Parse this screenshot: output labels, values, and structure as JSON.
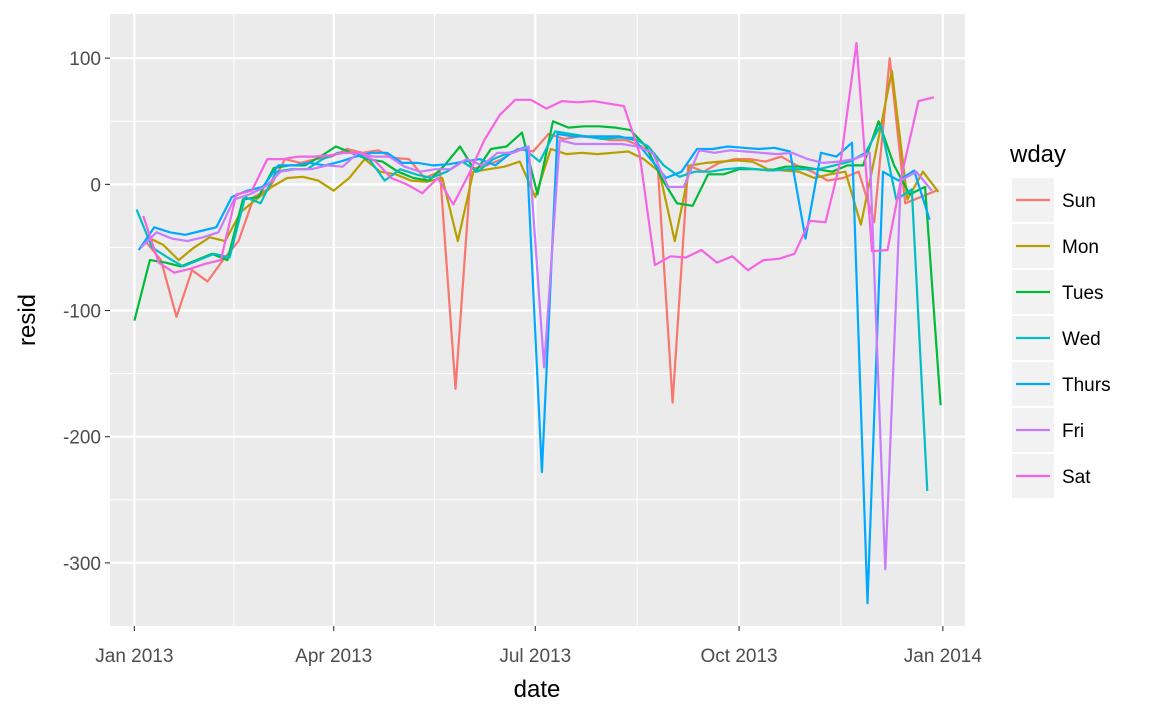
{
  "chart_data": {
    "type": "line",
    "xlabel": "date",
    "ylabel": "resid",
    "x_tick_labels": [
      "Jan 2013",
      "Apr 2013",
      "Jul 2013",
      "Oct 2013",
      "Jan 2014"
    ],
    "x_tick_dates": [
      "2013-01-01",
      "2013-04-01",
      "2013-07-01",
      "2013-10-01",
      "2014-01-01"
    ],
    "xlim": [
      "2012-12-21",
      "2014-01-11"
    ],
    "y_tick_labels": [
      "100",
      "0",
      "-100",
      "-200",
      "-300"
    ],
    "y_ticks": [
      100,
      0,
      -100,
      -200,
      -300
    ],
    "ylim": [
      -350,
      135
    ],
    "grid": true,
    "legend": {
      "title": "wday",
      "position": "right"
    },
    "series": [
      {
        "name": "Sun",
        "color": "#F8766D",
        "x": [
          "2013-01-06",
          "2013-01-13",
          "2013-01-20",
          "2013-01-27",
          "2013-02-03",
          "2013-02-10",
          "2013-02-17",
          "2013-02-24",
          "2013-03-03",
          "2013-03-10",
          "2013-03-17",
          "2013-03-24",
          "2013-03-31",
          "2013-04-07",
          "2013-04-14",
          "2013-04-21",
          "2013-04-28",
          "2013-05-05",
          "2013-05-12",
          "2013-05-19",
          "2013-05-26",
          "2013-06-02",
          "2013-06-09",
          "2013-06-16",
          "2013-06-23",
          "2013-06-30",
          "2013-07-07",
          "2013-07-14",
          "2013-07-21",
          "2013-07-28",
          "2013-08-04",
          "2013-08-11",
          "2013-08-18",
          "2013-08-25",
          "2013-09-01",
          "2013-09-08",
          "2013-09-15",
          "2013-09-22",
          "2013-09-29",
          "2013-10-06",
          "2013-10-13",
          "2013-10-20",
          "2013-10-27",
          "2013-11-03",
          "2013-11-10",
          "2013-11-17",
          "2013-11-24",
          "2013-12-01",
          "2013-12-08",
          "2013-12-15",
          "2013-12-22",
          "2013-12-29"
        ],
        "y": [
          -45,
          -60,
          -105,
          -68,
          -77,
          -60,
          -45,
          -10,
          -3,
          20,
          17,
          20,
          22,
          28,
          25,
          27,
          21,
          20,
          5,
          10,
          -162,
          12,
          15,
          20,
          28,
          26,
          40,
          36,
          38,
          37,
          35,
          35,
          30,
          22,
          -173,
          15,
          10,
          17,
          20,
          20,
          18,
          22,
          15,
          10,
          3,
          5,
          10,
          -30,
          100,
          -15,
          -10,
          -5
        ]
      },
      {
        "name": "Mon",
        "color": "#B79F00",
        "x": [
          "2013-01-07",
          "2013-01-14",
          "2013-01-21",
          "2013-01-28",
          "2013-02-04",
          "2013-02-11",
          "2013-02-18",
          "2013-02-25",
          "2013-03-04",
          "2013-03-11",
          "2013-03-18",
          "2013-03-25",
          "2013-04-01",
          "2013-04-08",
          "2013-04-15",
          "2013-04-22",
          "2013-04-29",
          "2013-05-06",
          "2013-05-13",
          "2013-05-20",
          "2013-05-27",
          "2013-06-03",
          "2013-06-10",
          "2013-06-17",
          "2013-06-24",
          "2013-07-01",
          "2013-07-08",
          "2013-07-15",
          "2013-07-22",
          "2013-07-29",
          "2013-08-05",
          "2013-08-12",
          "2013-08-19",
          "2013-08-26",
          "2013-09-02",
          "2013-09-09",
          "2013-09-16",
          "2013-09-23",
          "2013-09-30",
          "2013-10-07",
          "2013-10-14",
          "2013-10-21",
          "2013-10-28",
          "2013-11-04",
          "2013-11-11",
          "2013-11-18",
          "2013-11-25",
          "2013-12-02",
          "2013-12-09",
          "2013-12-16",
          "2013-12-23",
          "2013-12-30"
        ],
        "y": [
          -42,
          -48,
          -60,
          -50,
          -42,
          -45,
          -22,
          -12,
          -2,
          5,
          6,
          3,
          -5,
          5,
          20,
          10,
          8,
          3,
          2,
          5,
          -45,
          10,
          12,
          14,
          18,
          -10,
          28,
          24,
          25,
          24,
          25,
          26,
          20,
          10,
          -45,
          15,
          17,
          18,
          19,
          18,
          12,
          11,
          10,
          5,
          8,
          10,
          -32,
          28,
          90,
          -12,
          10,
          -6
        ]
      },
      {
        "name": "Tues",
        "color": "#00BA38",
        "x": [
          "2013-01-01",
          "2013-01-08",
          "2013-01-15",
          "2013-01-22",
          "2013-01-29",
          "2013-02-05",
          "2013-02-12",
          "2013-02-19",
          "2013-02-26",
          "2013-03-05",
          "2013-03-12",
          "2013-03-19",
          "2013-03-26",
          "2013-04-02",
          "2013-04-09",
          "2013-04-16",
          "2013-04-23",
          "2013-04-30",
          "2013-05-07",
          "2013-05-14",
          "2013-05-21",
          "2013-05-28",
          "2013-06-04",
          "2013-06-11",
          "2013-06-18",
          "2013-06-25",
          "2013-07-02",
          "2013-07-09",
          "2013-07-16",
          "2013-07-23",
          "2013-07-30",
          "2013-08-06",
          "2013-08-13",
          "2013-08-20",
          "2013-08-27",
          "2013-09-03",
          "2013-09-10",
          "2013-09-17",
          "2013-09-24",
          "2013-10-01",
          "2013-10-08",
          "2013-10-15",
          "2013-10-22",
          "2013-10-29",
          "2013-11-05",
          "2013-11-12",
          "2013-11-19",
          "2013-11-26",
          "2013-12-03",
          "2013-12-10",
          "2013-12-17",
          "2013-12-24",
          "2013-12-31"
        ],
        "y": [
          -108,
          -60,
          -62,
          -65,
          -60,
          -55,
          -60,
          -12,
          -10,
          13,
          15,
          15,
          22,
          30,
          25,
          20,
          18,
          10,
          5,
          3,
          15,
          30,
          10,
          28,
          30,
          41,
          -8,
          50,
          45,
          46,
          46,
          45,
          43,
          30,
          5,
          -15,
          -17,
          8,
          8,
          12,
          12,
          11,
          14,
          14,
          12,
          10,
          15,
          15,
          50,
          15,
          -8,
          -2,
          -175
        ]
      },
      {
        "name": "Wed",
        "color": "#00BFC4",
        "x": [
          "2013-01-02",
          "2013-01-09",
          "2013-01-16",
          "2013-01-23",
          "2013-01-30",
          "2013-02-06",
          "2013-02-13",
          "2013-02-20",
          "2013-02-27",
          "2013-03-06",
          "2013-03-13",
          "2013-03-20",
          "2013-03-27",
          "2013-04-03",
          "2013-04-10",
          "2013-04-17",
          "2013-04-24",
          "2013-05-01",
          "2013-05-08",
          "2013-05-15",
          "2013-05-22",
          "2013-05-29",
          "2013-06-05",
          "2013-06-12",
          "2013-06-19",
          "2013-06-26",
          "2013-07-03",
          "2013-07-10",
          "2013-07-17",
          "2013-07-24",
          "2013-07-31",
          "2013-08-07",
          "2013-08-14",
          "2013-08-21",
          "2013-08-28",
          "2013-09-04",
          "2013-09-11",
          "2013-09-18",
          "2013-09-25",
          "2013-10-02",
          "2013-10-09",
          "2013-10-16",
          "2013-10-23",
          "2013-10-30",
          "2013-11-06",
          "2013-11-13",
          "2013-11-20",
          "2013-11-27",
          "2013-12-04",
          "2013-12-11",
          "2013-12-18",
          "2013-12-25"
        ],
        "y": [
          -20,
          -50,
          -58,
          -65,
          -60,
          -55,
          -58,
          -10,
          -15,
          10,
          12,
          12,
          20,
          25,
          25,
          20,
          3,
          12,
          8,
          5,
          10,
          18,
          10,
          20,
          25,
          28,
          18,
          42,
          40,
          38,
          36,
          37,
          37,
          30,
          15,
          6,
          10,
          10,
          12,
          13,
          12,
          11,
          12,
          12,
          12,
          15,
          18,
          25,
          47,
          -12,
          -4,
          -243
        ]
      },
      {
        "name": "Thurs",
        "color": "#00A9FF",
        "x": [
          "2013-01-03",
          "2013-01-10",
          "2013-01-17",
          "2013-01-24",
          "2013-01-31",
          "2013-02-07",
          "2013-02-14",
          "2013-02-21",
          "2013-02-28",
          "2013-03-07",
          "2013-03-14",
          "2013-03-21",
          "2013-03-28",
          "2013-04-04",
          "2013-04-11",
          "2013-04-18",
          "2013-04-25",
          "2013-05-02",
          "2013-05-09",
          "2013-05-16",
          "2013-05-23",
          "2013-05-30",
          "2013-06-06",
          "2013-06-13",
          "2013-06-20",
          "2013-06-27",
          "2013-07-04",
          "2013-07-11",
          "2013-07-18",
          "2013-07-25",
          "2013-08-01",
          "2013-08-08",
          "2013-08-15",
          "2013-08-22",
          "2013-08-29",
          "2013-09-05",
          "2013-09-12",
          "2013-09-19",
          "2013-09-26",
          "2013-10-03",
          "2013-10-10",
          "2013-10-17",
          "2013-10-24",
          "2013-10-31",
          "2013-11-07",
          "2013-11-14",
          "2013-11-21",
          "2013-11-28",
          "2013-12-05",
          "2013-12-12",
          "2013-12-19",
          "2013-12-26"
        ],
        "y": [
          -52,
          -34,
          -38,
          -40,
          -37,
          -34,
          -10,
          -5,
          -2,
          15,
          15,
          17,
          15,
          18,
          22,
          25,
          25,
          17,
          17,
          15,
          16,
          18,
          20,
          15,
          25,
          30,
          -228,
          40,
          38,
          38,
          38,
          38,
          35,
          20,
          5,
          10,
          28,
          28,
          30,
          29,
          28,
          29,
          26,
          -43,
          25,
          22,
          33,
          -332,
          10,
          3,
          11,
          -28
        ]
      },
      {
        "name": "Fri",
        "color": "#C77CFF",
        "x": [
          "2013-01-04",
          "2013-01-11",
          "2013-01-18",
          "2013-01-25",
          "2013-02-01",
          "2013-02-08",
          "2013-02-15",
          "2013-02-22",
          "2013-03-01",
          "2013-03-08",
          "2013-03-15",
          "2013-03-22",
          "2013-03-29",
          "2013-04-05",
          "2013-04-12",
          "2013-04-19",
          "2013-04-26",
          "2013-05-03",
          "2013-05-10",
          "2013-05-17",
          "2013-05-24",
          "2013-05-31",
          "2013-06-07",
          "2013-06-14",
          "2013-06-21",
          "2013-06-28",
          "2013-07-05",
          "2013-07-12",
          "2013-07-19",
          "2013-07-26",
          "2013-08-02",
          "2013-08-09",
          "2013-08-16",
          "2013-08-23",
          "2013-08-30",
          "2013-09-06",
          "2013-09-13",
          "2013-09-20",
          "2013-09-27",
          "2013-10-04",
          "2013-10-11",
          "2013-10-18",
          "2013-10-25",
          "2013-11-01",
          "2013-11-08",
          "2013-11-15",
          "2013-11-22",
          "2013-11-29",
          "2013-12-06",
          "2013-12-13",
          "2013-12-20",
          "2013-12-27"
        ],
        "y": [
          -50,
          -38,
          -43,
          -45,
          -42,
          -38,
          -12,
          -8,
          -2,
          10,
          12,
          12,
          15,
          14,
          25,
          22,
          22,
          14,
          10,
          12,
          12,
          20,
          15,
          25,
          25,
          30,
          -145,
          35,
          32,
          32,
          32,
          32,
          30,
          25,
          -2,
          -2,
          27,
          25,
          27,
          26,
          25,
          24,
          25,
          20,
          17,
          18,
          20,
          25,
          -305,
          3,
          10,
          -5
        ]
      },
      {
        "name": "Sat",
        "color": "#F564E3",
        "x": [
          "2013-01-05",
          "2013-01-12",
          "2013-01-19",
          "2013-01-26",
          "2013-02-02",
          "2013-02-09",
          "2013-02-16",
          "2013-02-23",
          "2013-03-02",
          "2013-03-09",
          "2013-03-16",
          "2013-03-23",
          "2013-03-30",
          "2013-04-06",
          "2013-04-13",
          "2013-04-20",
          "2013-04-27",
          "2013-05-04",
          "2013-05-11",
          "2013-05-18",
          "2013-05-25",
          "2013-06-01",
          "2013-06-08",
          "2013-06-15",
          "2013-06-22",
          "2013-06-29",
          "2013-07-06",
          "2013-07-13",
          "2013-07-20",
          "2013-07-27",
          "2013-08-03",
          "2013-08-10",
          "2013-08-17",
          "2013-08-24",
          "2013-08-31",
          "2013-09-07",
          "2013-09-14",
          "2013-09-21",
          "2013-09-28",
          "2013-10-05",
          "2013-10-12",
          "2013-10-19",
          "2013-10-26",
          "2013-11-02",
          "2013-11-09",
          "2013-11-16",
          "2013-11-23",
          "2013-11-30",
          "2013-12-07",
          "2013-12-14",
          "2013-12-21",
          "2013-12-28"
        ],
        "y": [
          -25,
          -62,
          -70,
          -67,
          -63,
          -60,
          -8,
          -5,
          20,
          20,
          22,
          22,
          23,
          25,
          25,
          18,
          5,
          0,
          -7,
          5,
          -16,
          8,
          35,
          55,
          67,
          67,
          60,
          66,
          65,
          66,
          64,
          62,
          25,
          -64,
          -57,
          -58,
          -52,
          -62,
          -57,
          -68,
          -60,
          -59,
          -55,
          -29,
          -30,
          20,
          112,
          -53,
          -52,
          12,
          66,
          69
        ]
      }
    ]
  }
}
